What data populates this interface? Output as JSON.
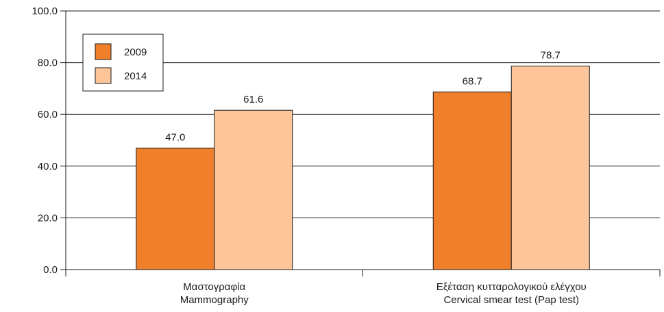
{
  "chart_data": {
    "type": "bar",
    "title": "",
    "xlabel": "",
    "ylabel": "",
    "ylim": [
      0,
      100
    ],
    "yticks": [
      0,
      20,
      40,
      60,
      80,
      100
    ],
    "ytick_labels": [
      "0.0",
      "20.0",
      "40.0",
      "60.0",
      "80.0",
      "100.0"
    ],
    "grid": true,
    "legend_position": "top-left",
    "categories": [
      [
        "Μαστογραφία",
        "Mammography"
      ],
      [
        "Εξέταση κυτταρολογικού ελέγχου",
        "Cervical smear test (Pap test)"
      ]
    ],
    "series": [
      {
        "name": "2009",
        "color": "#f07f2b",
        "values": [
          47.0,
          68.7
        ],
        "labels": [
          "47.0",
          "68.7"
        ]
      },
      {
        "name": "2014",
        "color": "#fcc69a",
        "values": [
          61.6,
          78.7
        ],
        "labels": [
          "61.6",
          "78.7"
        ]
      }
    ]
  }
}
